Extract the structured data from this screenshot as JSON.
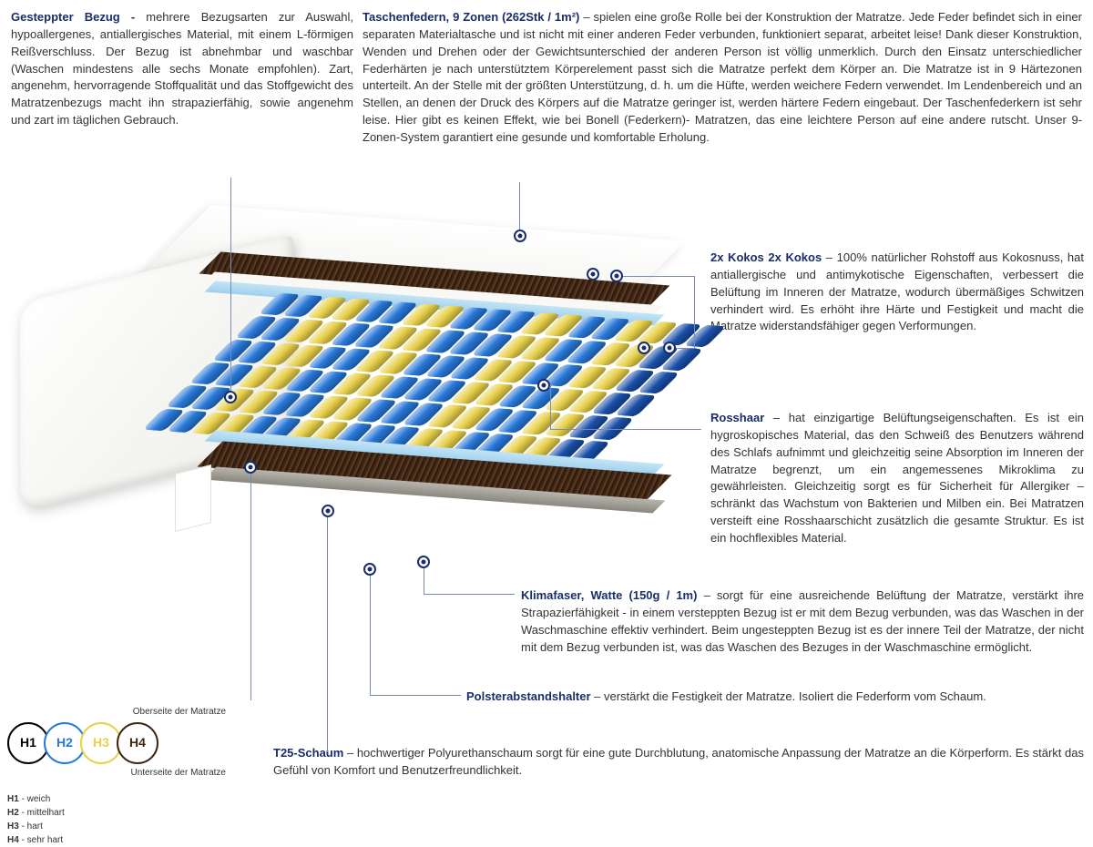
{
  "colors": {
    "title": "#1a2d6b",
    "text": "#333333",
    "line": "#7a8bb8",
    "spring_blue": "#2878d8",
    "spring_darkblue": "#1a4fa8",
    "spring_yellow": "#e8d04a",
    "coconut": "#3e2614"
  },
  "topleft": {
    "title": "Gesteppter Bezug - ",
    "body": "mehrere Bezugsarten zur Auswahl, hypoallergenes, antiallergisches Material, mit einem L-förmigen Reißverschluss. Der Bezug ist abnehmbar und waschbar (Waschen mindestens alle sechs Monate empfohlen). Zart, angenehm, hervorragende Stoffqualität und das Stoffgewicht des Matratzenbezugs macht ihn strapazierfähig, sowie angenehm und zart im täglichen Gebrauch."
  },
  "topright": {
    "title": "Taschenfedern, 9 Zonen (262Stk / 1m²)",
    "body": " – spielen eine große Rolle bei der Konstruktion der Matratze. Jede Feder befindet sich in einer separaten Materialtasche und ist nicht mit einer anderen Feder verbunden, funktioniert separat, arbeitet leise! Dank dieser Konstruktion, Wenden und Drehen oder der Gewichtsunterschied der anderen Person ist völlig unmerklich. Durch den Einsatz unterschiedlicher Federhärten je nach unterstütztem Körperelement passt sich die Matratze perfekt dem Körper an. Die Matratze ist in 9 Härtezonen unterteilt. An der Stelle mit der größten Unterstützung, d. h. um die Hüfte, werden weichere Federn verwendet. Im Lendenbereich und an Stellen, an denen der Druck des Körpers auf die Matratze geringer ist, werden härtere Federn eingebaut. Der Taschenfederkern ist sehr leise. Hier gibt es keinen Effekt, wie bei Bonell (Federkern)- Matratzen, das eine leichtere Person auf eine andere rutscht. Unser 9-Zonen-System garantiert eine gesunde und komfortable Erholung."
  },
  "kokos": {
    "heading": "2x Kokos",
    "title": "2x Kokos",
    "body": " – 100% natürlicher Rohstoff aus Kokosnuss, hat antiallergische und antimykotische Eigenschaften, verbessert die Belüftung im Inneren der Matratze, wodurch übermäßiges Schwitzen verhindert wird. Es erhöht ihre Härte und Festigkeit und macht die Matratze widerstandsfähiger gegen Verformungen."
  },
  "rosshaar": {
    "title": "Rosshaar",
    "body": " – hat einzigartige Belüftungseigenschaften. Es ist ein hygroskopisches Material, das den Schweiß des Benutzers während des Schlafs aufnimmt und gleichzeitig seine Absorption im Inneren der Matratze begrenzt, um ein angemessenes Mikroklima zu gewährleisten. Gleichzeitig sorgt es für Sicherheit für Allergiker – schränkt das Wachstum von Bakterien und Milben ein. Bei Matratzen versteift eine Rosshaarschicht zusätzlich die gesamte Struktur. Es ist ein hochflexibles Material."
  },
  "klimafaser": {
    "title": "Klimafaser, Watte (150g / 1m)",
    "body": " – sorgt für eine ausreichende Belüftung der Matratze, verstärkt ihre Strapazierfähigkeit - in einem versteppten Bezug ist er mit dem Bezug verbunden, was das Waschen in der Waschmaschine effektiv verhindert. Beim ungesteppten Bezug ist es der innere Teil der Matratze, der nicht mit dem Bezug verbunden ist, was das Waschen des Bezuges in der Waschmaschine ermöglicht."
  },
  "polster": {
    "title": "Polsterabstandshalter",
    "body": " – verstärkt die Festigkeit der Matratze. Isoliert die Federform vom Schaum."
  },
  "t25": {
    "title": "T25-Schaum",
    "body": " – hochwertiger Polyurethanschaum sorgt für eine gute Durchblutung, anatomische Anpassung der Matratze an die Körperform. Es stärkt das Gefühl von Komfort und Benutzerfreundlichkeit."
  },
  "legend": {
    "top_label": "Oberseite der Matratze",
    "bottom_label": "Unterseite der Matratze",
    "items": [
      {
        "code": "H1",
        "label": "weich",
        "color": "#000000"
      },
      {
        "code": "H2",
        "label": "mittelhart",
        "color": "#2878d8"
      },
      {
        "code": "H3",
        "label": "hart",
        "color": "#e8d04a"
      },
      {
        "code": "H4",
        "label": "sehr hart",
        "color": "#3e2614"
      }
    ]
  },
  "spring_zones": [
    {
      "color": "blue",
      "count": 2
    },
    {
      "color": "yellow",
      "count": 2
    },
    {
      "color": "blue",
      "count": 2
    },
    {
      "color": "yellow",
      "count": 2
    },
    {
      "color": "blue",
      "count": 3
    },
    {
      "color": "yellow",
      "count": 2
    },
    {
      "color": "blue",
      "count": 2
    },
    {
      "color": "yellow",
      "count": 2
    },
    {
      "color": "darkblue",
      "count": 2
    }
  ]
}
